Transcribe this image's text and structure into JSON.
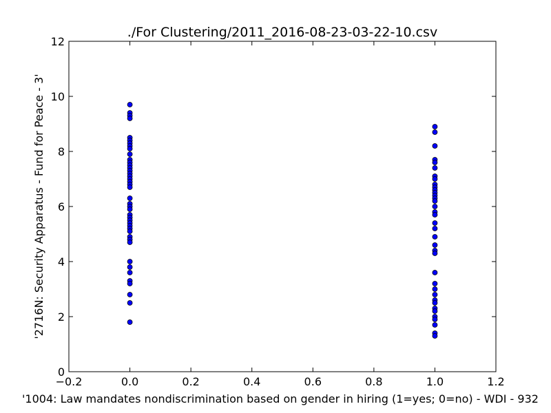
{
  "chart_data": {
    "type": "scatter",
    "title": "./For Clustering/2011_2016-08-23-03-22-10.csv",
    "xlabel": "'1004: Law mandates nondiscrimination based on gender in hiring  (1=yes; 0=no) - WDI - 932",
    "ylabel": "'2716N: Security Apparatus - Fund for Peace - 3'",
    "xlim": [
      -0.2,
      1.2
    ],
    "ylim": [
      0,
      12
    ],
    "x_ticks": [
      "−0.2",
      "0.0",
      "0.2",
      "0.4",
      "0.6",
      "0.8",
      "1.0",
      "1.2"
    ],
    "y_ticks": [
      "0",
      "2",
      "4",
      "6",
      "8",
      "10",
      "12"
    ],
    "grid": false,
    "marker_color": "#0000ff",
    "series": [
      {
        "x": 0,
        "values": [
          9.7,
          9.4,
          9.3,
          9.2,
          8.5,
          8.4,
          8.3,
          8.2,
          8.1,
          7.9,
          7.7,
          7.6,
          7.5,
          7.4,
          7.3,
          7.2,
          7.1,
          7.0,
          6.9,
          6.8,
          6.7,
          6.3,
          6.1,
          6.0,
          5.9,
          5.7,
          5.6,
          5.5,
          5.4,
          5.3,
          5.2,
          5.1,
          4.9,
          4.8,
          4.7,
          4.0,
          3.8,
          3.6,
          3.3,
          3.2,
          2.8,
          2.5,
          1.8
        ]
      },
      {
        "x": 1,
        "values": [
          8.9,
          8.7,
          8.2,
          7.7,
          7.6,
          7.4,
          7.1,
          7.0,
          6.8,
          6.7,
          6.6,
          6.5,
          6.4,
          6.3,
          6.2,
          6.0,
          5.8,
          5.7,
          5.4,
          5.2,
          4.9,
          4.6,
          4.4,
          4.3,
          3.6,
          3.2,
          3.0,
          2.8,
          2.6,
          2.5,
          2.3,
          2.2,
          2.0,
          1.9,
          1.7,
          1.4,
          1.3
        ]
      }
    ]
  }
}
